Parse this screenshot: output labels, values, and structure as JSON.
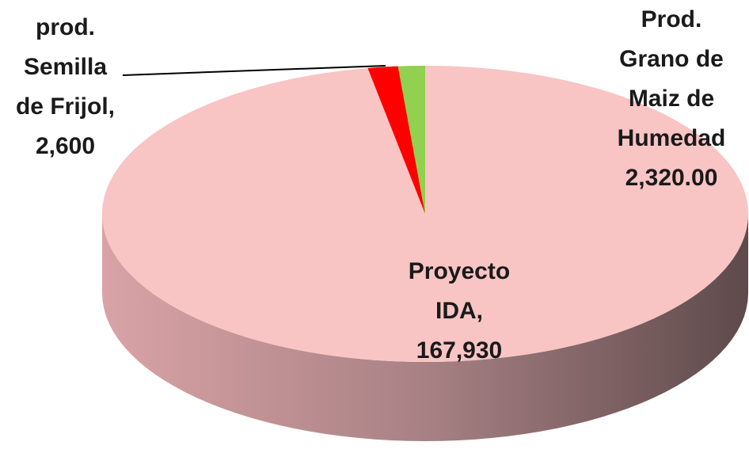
{
  "chart_data": {
    "type": "pie3d",
    "categories": [
      "Proyecto IDA,",
      "prod. Semilla de Frijol,",
      "Prod. Grano de Maiz de Humedad"
    ],
    "values": [
      167930,
      2600,
      2320
    ],
    "value_labels": [
      "167,930",
      "2,600",
      "2,320.00"
    ],
    "colors": [
      "#f9c4c4",
      "#ff0000",
      "#92d050"
    ]
  }
}
